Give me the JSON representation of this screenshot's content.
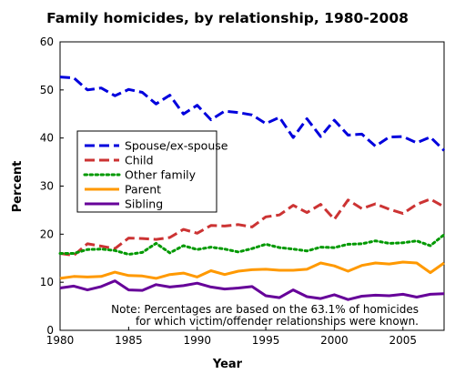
{
  "chart_data": {
    "type": "line",
    "title": "Family homicides, by relationship, 1980-2008",
    "xlabel": "Year",
    "ylabel": "Percent",
    "xlim": [
      1980,
      2008
    ],
    "ylim": [
      0,
      60
    ],
    "x_ticks": [
      1980,
      1985,
      1990,
      1995,
      2000,
      2005
    ],
    "y_ticks": [
      0,
      10,
      20,
      30,
      40,
      50,
      60
    ],
    "grid": false,
    "legend_position": "center-left",
    "note": [
      "Note: Percentages are based on the 63.1% of homicides",
      "for which victim/offender relationships were known."
    ],
    "x": [
      1980,
      1981,
      1982,
      1983,
      1984,
      1985,
      1986,
      1987,
      1988,
      1989,
      1990,
      1991,
      1992,
      1993,
      1994,
      1995,
      1996,
      1997,
      1998,
      1999,
      2000,
      2001,
      2002,
      2003,
      2004,
      2005,
      2006,
      2007,
      2008
    ],
    "series": [
      {
        "name": "Spouse/ex-spouse",
        "color": "#0000dd",
        "dash": "dashed",
        "values": [
          52.7,
          52.5,
          50.0,
          50.4,
          48.8,
          50.1,
          49.5,
          47.1,
          48.9,
          45.0,
          46.8,
          43.8,
          45.6,
          45.3,
          44.8,
          43.0,
          44.3,
          40.1,
          44.0,
          40.3,
          43.7,
          40.6,
          40.8,
          38.3,
          40.2,
          40.3,
          39.0,
          40.2,
          37.4
        ]
      },
      {
        "name": "Child",
        "color": "#cc3333",
        "dash": "dashed",
        "values": [
          16.0,
          15.6,
          18.0,
          17.5,
          17.0,
          19.2,
          19.1,
          18.9,
          19.3,
          21.0,
          20.2,
          21.8,
          21.7,
          22.0,
          21.5,
          23.6,
          24.0,
          26.0,
          24.5,
          26.2,
          23.1,
          27.1,
          25.3,
          26.3,
          25.2,
          24.3,
          26.2,
          27.3,
          25.7
        ]
      },
      {
        "name": "Other family",
        "color": "#009900",
        "dash": "dotted",
        "values": [
          16.0,
          16.0,
          16.8,
          16.9,
          16.6,
          15.8,
          16.2,
          18.1,
          16.1,
          17.6,
          16.8,
          17.3,
          16.9,
          16.3,
          17.0,
          17.9,
          17.2,
          16.9,
          16.5,
          17.3,
          17.2,
          17.9,
          18.0,
          18.6,
          18.1,
          18.2,
          18.6,
          17.6,
          19.9
        ]
      },
      {
        "name": "Parent",
        "color": "#ff9900",
        "dash": "solid",
        "values": [
          10.8,
          11.2,
          11.1,
          11.2,
          12.1,
          11.4,
          11.3,
          10.8,
          11.6,
          11.9,
          11.1,
          12.4,
          11.6,
          12.3,
          12.6,
          12.7,
          12.5,
          12.5,
          12.7,
          14.0,
          13.4,
          12.3,
          13.5,
          14.0,
          13.8,
          14.2,
          14.0,
          12.0,
          14.0
        ]
      },
      {
        "name": "Sibling",
        "color": "#660099",
        "dash": "solid",
        "values": [
          8.8,
          9.2,
          8.4,
          9.1,
          10.3,
          8.4,
          8.3,
          9.5,
          9.0,
          9.3,
          9.8,
          9.0,
          8.6,
          8.8,
          9.1,
          7.2,
          6.8,
          8.4,
          7.0,
          6.6,
          7.4,
          6.4,
          7.1,
          7.3,
          7.2,
          7.5,
          6.9,
          7.5,
          7.6
        ]
      }
    ]
  }
}
